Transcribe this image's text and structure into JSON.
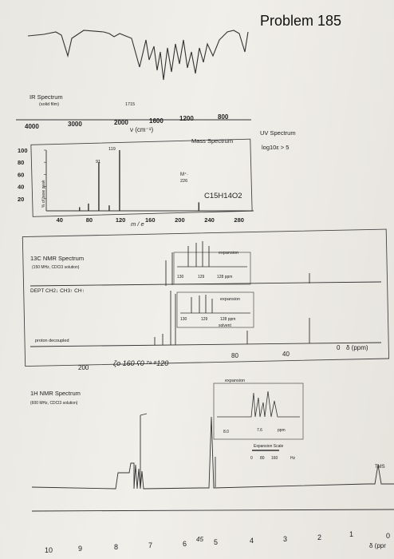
{
  "problem": {
    "title": "Problem 185"
  },
  "ir": {
    "title": "IR Spectrum",
    "subtitle": "(solid film)",
    "peak_label": "1715",
    "axis_ticks": [
      "4000",
      "3000",
      "2000",
      "1600",
      "1200",
      "800"
    ],
    "axis_label": "ν (cm⁻¹)"
  },
  "mass": {
    "title": "Mass Spectrum",
    "ylabel": "% of base peak",
    "yticks": [
      "100",
      "80",
      "60",
      "40",
      "20"
    ],
    "xticks": [
      "40",
      "80",
      "120",
      "160",
      "200",
      "240",
      "280"
    ],
    "xlabel": "m / e",
    "peak_labels": [
      "119",
      "91"
    ],
    "molecular_ion": "M⁺·",
    "molecular_ion_value": "226",
    "formula": "C15H14O2"
  },
  "uv": {
    "title": "UV Spectrum",
    "data": "log10ε > 5"
  },
  "c13": {
    "title": "13C NMR Spectrum",
    "subtitle": "(150 MHz, CDCl3 solution)",
    "dept_label": "DEPT  CH2↓  CH3↑  CH↑",
    "expansion1": "expansion",
    "exp1_ticks": [
      "130",
      "129",
      "128  ppm"
    ],
    "expansion2": "expansion",
    "exp2_ticks": [
      "130",
      "129",
      "128  ppm"
    ],
    "solvent": "solvent",
    "proton_decoupled": "proton decoupled",
    "axis_ticks": [
      "200",
      "160",
      "120",
      "80",
      "40",
      "0"
    ],
    "axis_label": "δ (ppm)",
    "handwritten_annotation": "ζo  160  ʕ0  ⁷ᵃ  ⁸120"
  },
  "h1": {
    "title": "1H NMR Spectrum",
    "subtitle": "(600 MHz, CDCl3 solution)",
    "expansion": "expansion",
    "exp_ticks": [
      "8.0",
      "7.6",
      "ppm"
    ],
    "expansion_scale": "Expansion Scale",
    "scale_ticks": [
      "0",
      "80",
      "160",
      "Hz"
    ],
    "tms": "TMS",
    "axis_ticks": [
      "10",
      "9",
      "8",
      "7",
      "6",
      "5",
      "4",
      "3",
      "2",
      "1",
      "0"
    ],
    "axis_label": "δ (ppr",
    "handwritten_annotation": "45"
  },
  "chart_data": [
    {
      "type": "bar",
      "title": "Mass Spectrum",
      "xlabel": "m / e",
      "ylabel": "% of base peak",
      "x": [
        65,
        77,
        91,
        105,
        119,
        226
      ],
      "values": [
        6,
        12,
        80,
        9,
        100,
        14
      ],
      "xlim": [
        20,
        300
      ],
      "ylim": [
        0,
        100
      ]
    }
  ]
}
